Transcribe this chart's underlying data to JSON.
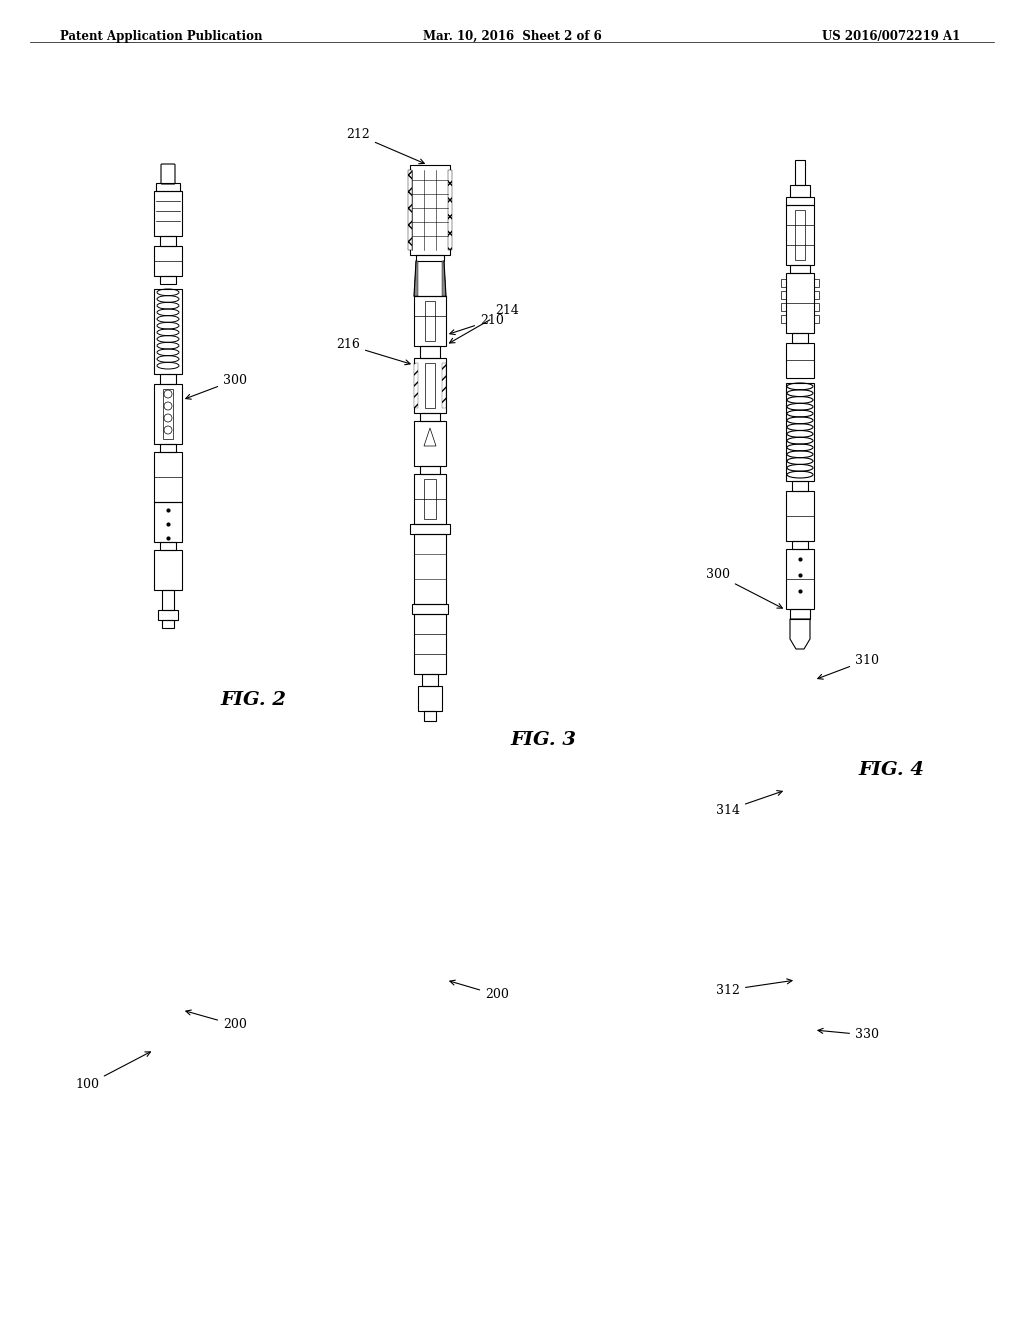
{
  "background_color": "#ffffff",
  "header_left": "Patent Application Publication",
  "header_center": "Mar. 10, 2016  Sheet 2 of 6",
  "header_right": "US 2016/0072219 A1",
  "fig2_label": "FIG. 2",
  "fig3_label": "FIG. 3",
  "fig4_label": "FIG. 4",
  "line_color": "#000000",
  "line_width": 0.8,
  "annotation_fontsize": 9,
  "header_fontsize": 8.5,
  "figlabel_fontsize": 14
}
